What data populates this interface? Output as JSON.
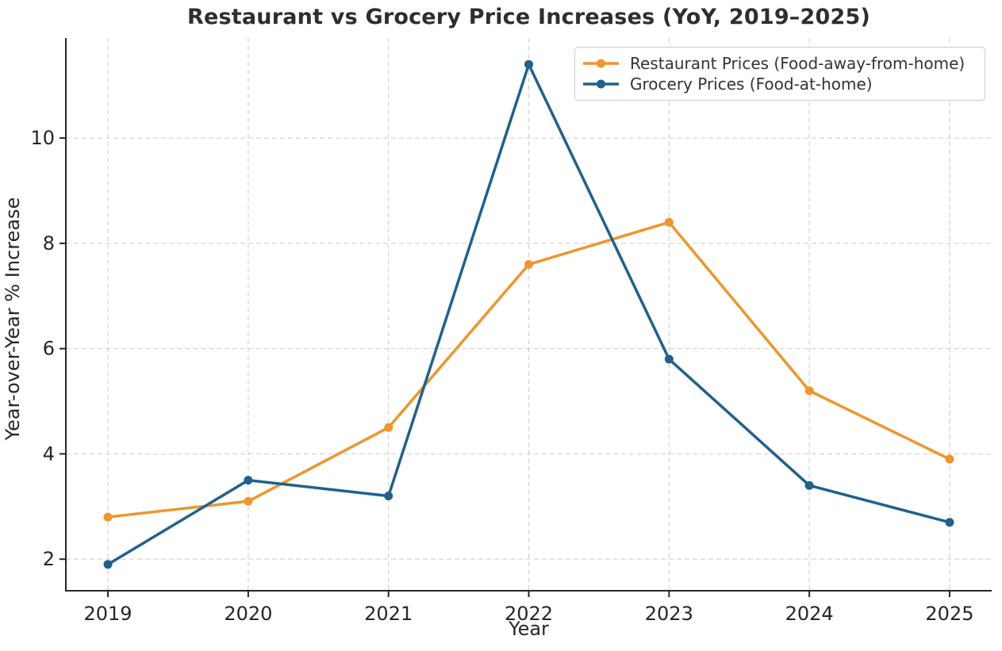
{
  "chart_data": {
    "type": "line",
    "title": "Restaurant vs Grocery Price Increases (YoY, 2019–2025)",
    "xlabel": "Year",
    "ylabel": "Year-over-Year % Increase",
    "categories": [
      2019,
      2020,
      2021,
      2022,
      2023,
      2024,
      2025
    ],
    "series": [
      {
        "name": "Restaurant Prices (Food-away-from-home)",
        "color": "#ef962c",
        "marker": "circle",
        "values": [
          2.8,
          3.1,
          4.5,
          7.6,
          8.4,
          5.2,
          3.9
        ]
      },
      {
        "name": "Grocery Prices (Food-at-home)",
        "color": "#20618d",
        "marker": "circle",
        "values": [
          1.9,
          3.5,
          3.2,
          11.4,
          5.8,
          3.4,
          2.7
        ]
      }
    ],
    "xlim": [
      2018.7,
      2025.3
    ],
    "ylim": [
      1.4,
      11.9
    ],
    "yticks": [
      2,
      4,
      6,
      8,
      10
    ],
    "grid": "dashed both axes",
    "legend_position": "upper right"
  },
  "colors": {
    "background": "#ffffff",
    "grid": "#cbcbcb",
    "axis": "#262626",
    "tick_text": "#262626",
    "title_text": "#2e2e2e",
    "legend_border": "#cccccc"
  }
}
